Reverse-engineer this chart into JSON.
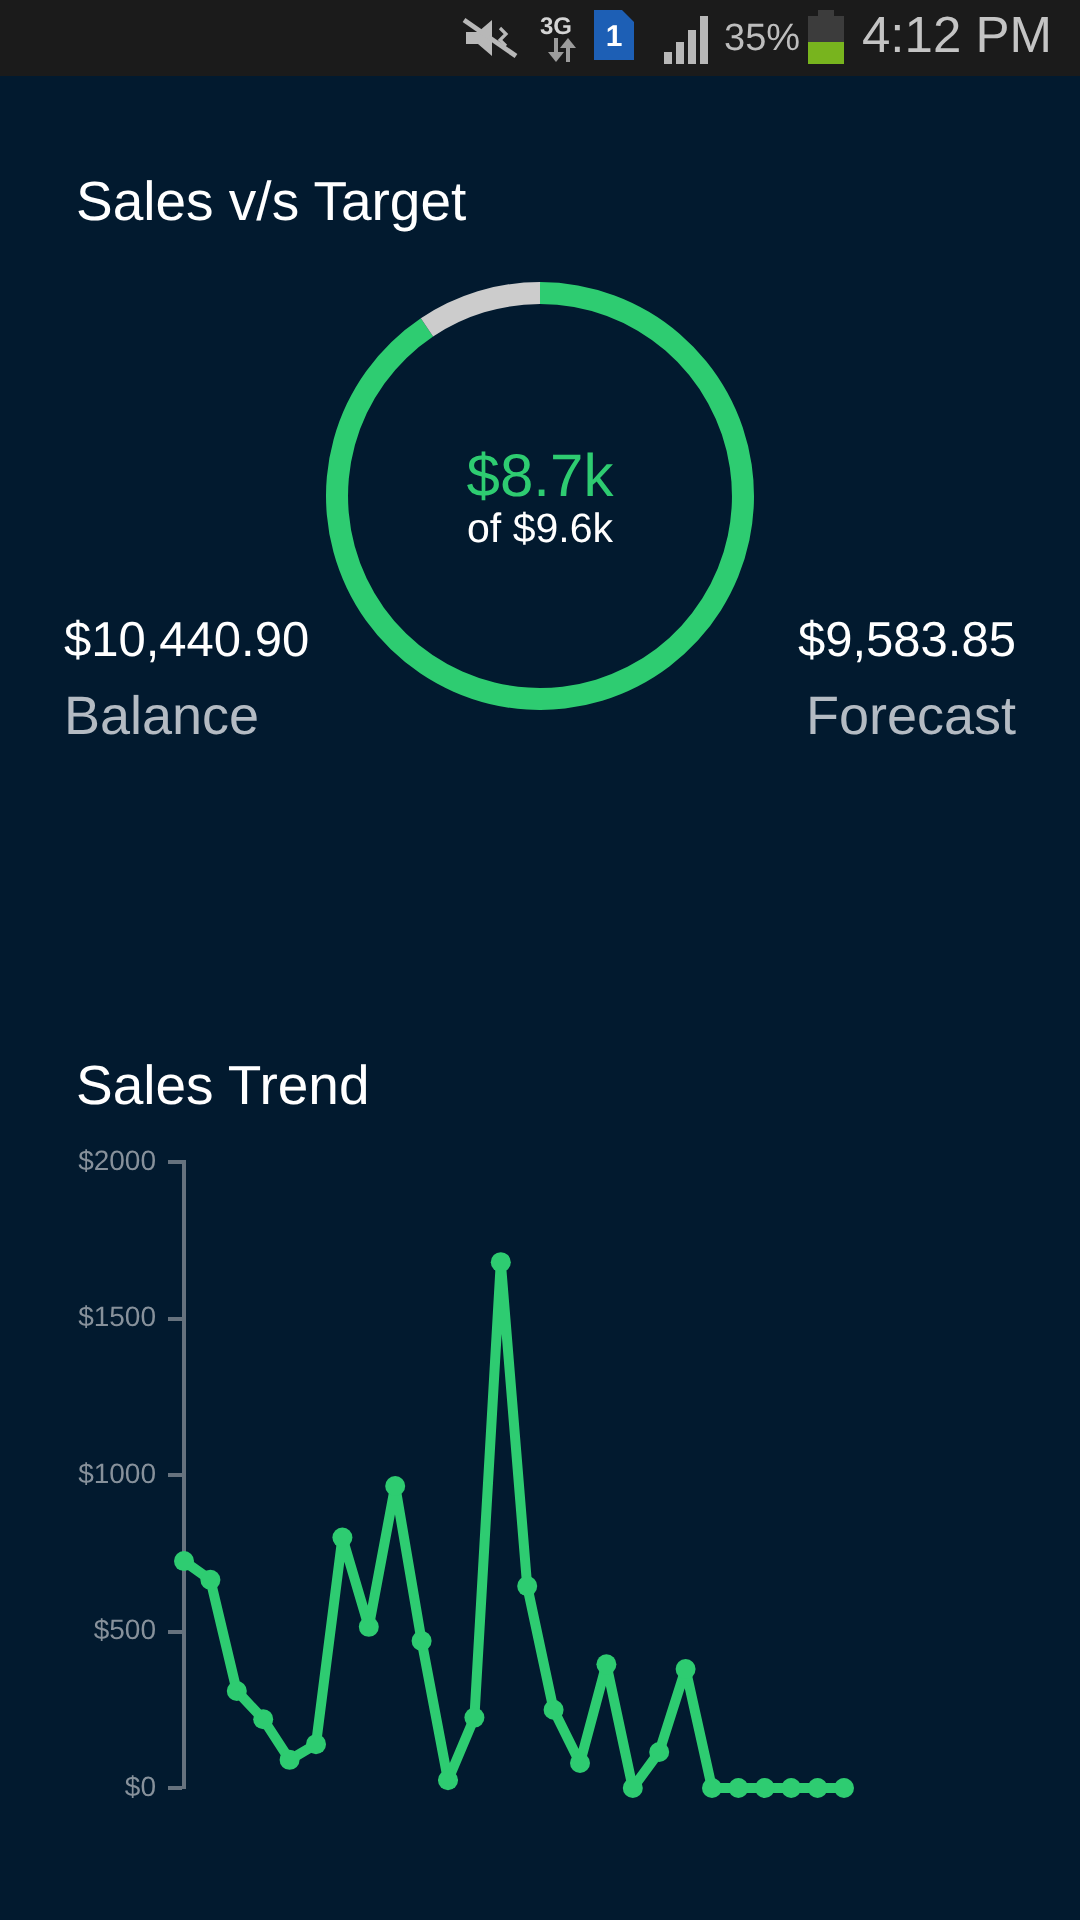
{
  "chart_data": [
    {
      "type": "other",
      "annotations": [
        "3G",
        "1",
        "35%",
        "4:12 PM"
      ]
    },
    {
      "type": "donut",
      "title": "Sales v/s Target",
      "categories": [
        null,
        null
      ],
      "values": [
        90.6,
        9.4
      ],
      "colors": [
        "#2ecc71",
        "#cccccc"
      ],
      "annotations": [
        "$8.7k",
        "of $9.6k",
        "$10,440.90",
        "Balance",
        "$9,583.85",
        "Forecast"
      ]
    },
    {
      "type": "line",
      "title": "Sales Trend",
      "categories": [
        null,
        null,
        null,
        null,
        null,
        null,
        null,
        null,
        null,
        null,
        null,
        null,
        null,
        null,
        null,
        null,
        null,
        null,
        null,
        null,
        null,
        null,
        null,
        null,
        null,
        null
      ],
      "series": [
        {
          "color": "#2ecc71",
          "values": [
            725,
            665,
            310,
            220,
            90,
            140,
            800,
            515,
            965,
            470,
            25,
            225,
            1680,
            645,
            250,
            80,
            395,
            0,
            115,
            380,
            0,
            0,
            0,
            0,
            0,
            0
          ]
        }
      ],
      "ylim": [
        0,
        2000
      ],
      "yticks": [
        {
          "value": 0,
          "label": "$0"
        },
        {
          "value": 500,
          "label": "$500"
        },
        {
          "value": 1000,
          "label": "$1000"
        },
        {
          "value": 1500,
          "label": "$1500"
        },
        {
          "value": 2000,
          "label": "$2000"
        }
      ],
      "grid": false,
      "marker": "circle",
      "line_style": "solid",
      "tick_labels": "y"
    }
  ]
}
